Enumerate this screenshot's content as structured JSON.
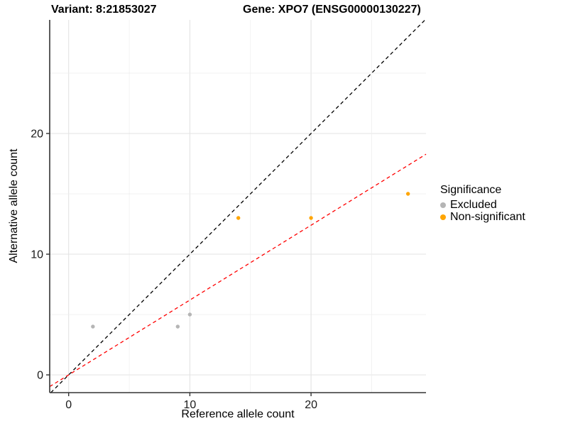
{
  "header": {
    "variant_title": "Variant: 8:21853027",
    "gene_title": "Gene: XPO7 (ENSG00000130227)"
  },
  "chart_data": {
    "type": "scatter",
    "xlabel": "Reference allele count",
    "ylabel": "Alternative allele count",
    "x_ticks": [
      0,
      10,
      20
    ],
    "y_ticks": [
      0,
      10,
      20
    ],
    "grid_interval": 5,
    "xlim": [
      -1.56,
      29.5
    ],
    "ylim": [
      -1.47,
      29.4
    ],
    "grid": "on",
    "series": [
      {
        "name": "Excluded",
        "color": "#b5b5b5",
        "points": [
          [
            2,
            4
          ],
          [
            9,
            4
          ],
          [
            10,
            5
          ]
        ]
      },
      {
        "name": "Non-significant",
        "color": "#ffa500",
        "points": [
          [
            14,
            13
          ],
          [
            20,
            13
          ],
          [
            28,
            15
          ]
        ]
      }
    ],
    "reference_lines": [
      {
        "name": "identity-line",
        "color": "#000000",
        "style": "dashed",
        "slope": 1,
        "intercept": 0
      },
      {
        "name": "regression-line",
        "color": "#ff0000",
        "style": "dashed",
        "slope": 0.62,
        "intercept": 0
      }
    ],
    "legend": {
      "title": "Significance",
      "position": "right",
      "items": [
        {
          "label": "Excluded",
          "color": "#b5b5b5"
        },
        {
          "label": "Non-significant",
          "color": "#ffa500"
        }
      ]
    },
    "colors": {
      "grid_major": "#e3e3e3",
      "grid_minor": "#ededed",
      "axis": "#333333",
      "background": "#ffffff"
    }
  }
}
